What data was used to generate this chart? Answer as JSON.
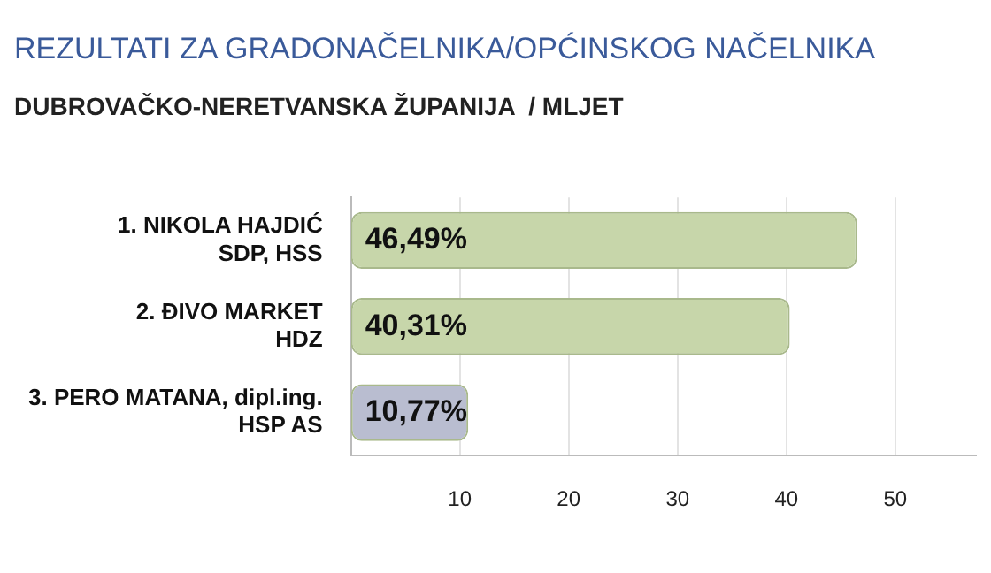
{
  "chart_data": {
    "type": "bar",
    "orientation": "horizontal",
    "title": "REZULTATI ZA GRADONAČELNIKA/OPĆINSKOG NAČELNIKA",
    "subtitle": "DUBROVAČKO-NERETVANSKA ŽUPANIJA  / MLJET",
    "categories": [
      "1. NIKOLA HAJDIĆ\nSDP, HSS",
      "2. ĐIVO MARKET\nHDZ",
      "3. PERO MATANA, dipl.ing.\nHSP AS"
    ],
    "values": [
      46.49,
      40.31,
      10.77
    ],
    "colors": [
      "#c7d6aa",
      "#c7d6aa",
      "#b9bdd0"
    ],
    "value_labels": [
      "46,49%",
      "40,31%",
      "10,77%"
    ],
    "xlim": [
      0,
      57.5
    ],
    "xticks": [
      10,
      20,
      30,
      40,
      50
    ],
    "grid": "x",
    "legend": false
  }
}
